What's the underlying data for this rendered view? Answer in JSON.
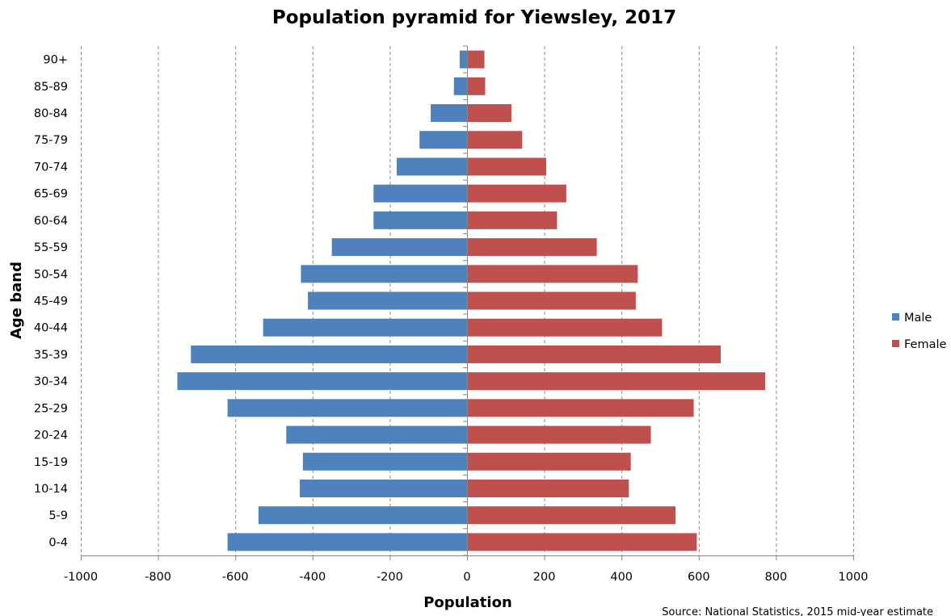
{
  "chart_data": {
    "type": "bar",
    "orientation": "horizontal",
    "title": "Population pyramid for Yiewsley, 2017",
    "xlabel": "Population",
    "ylabel": "Age band",
    "source": "Source: National Statistics, 2015 mid-year estimate",
    "xlim": [
      -1000,
      1000
    ],
    "xticks": [
      -1000,
      -800,
      -600,
      -400,
      -200,
      0,
      200,
      400,
      600,
      800,
      1000
    ],
    "grid": "vertical dashed",
    "legend_position": "right",
    "categories": [
      "0-4",
      "5-9",
      "10-14",
      "15-19",
      "20-24",
      "25-29",
      "30-34",
      "35-39",
      "40-44",
      "45-49",
      "50-54",
      "55-59",
      "60-64",
      "65-69",
      "70-74",
      "75-79",
      "80-84",
      "85-89",
      "90+"
    ],
    "series": [
      {
        "name": "Male",
        "color": "#4f81bd",
        "values": [
          -620,
          -540,
          -433,
          -425,
          -468,
          -620,
          -750,
          -715,
          -528,
          -412,
          -430,
          -350,
          -242,
          -242,
          -182,
          -123,
          -94,
          -34,
          -19
        ]
      },
      {
        "name": "Female",
        "color": "#c0504d",
        "values": [
          595,
          540,
          419,
          424,
          476,
          587,
          772,
          657,
          505,
          437,
          442,
          336,
          233,
          257,
          205,
          143,
          115,
          47,
          45
        ]
      }
    ]
  }
}
